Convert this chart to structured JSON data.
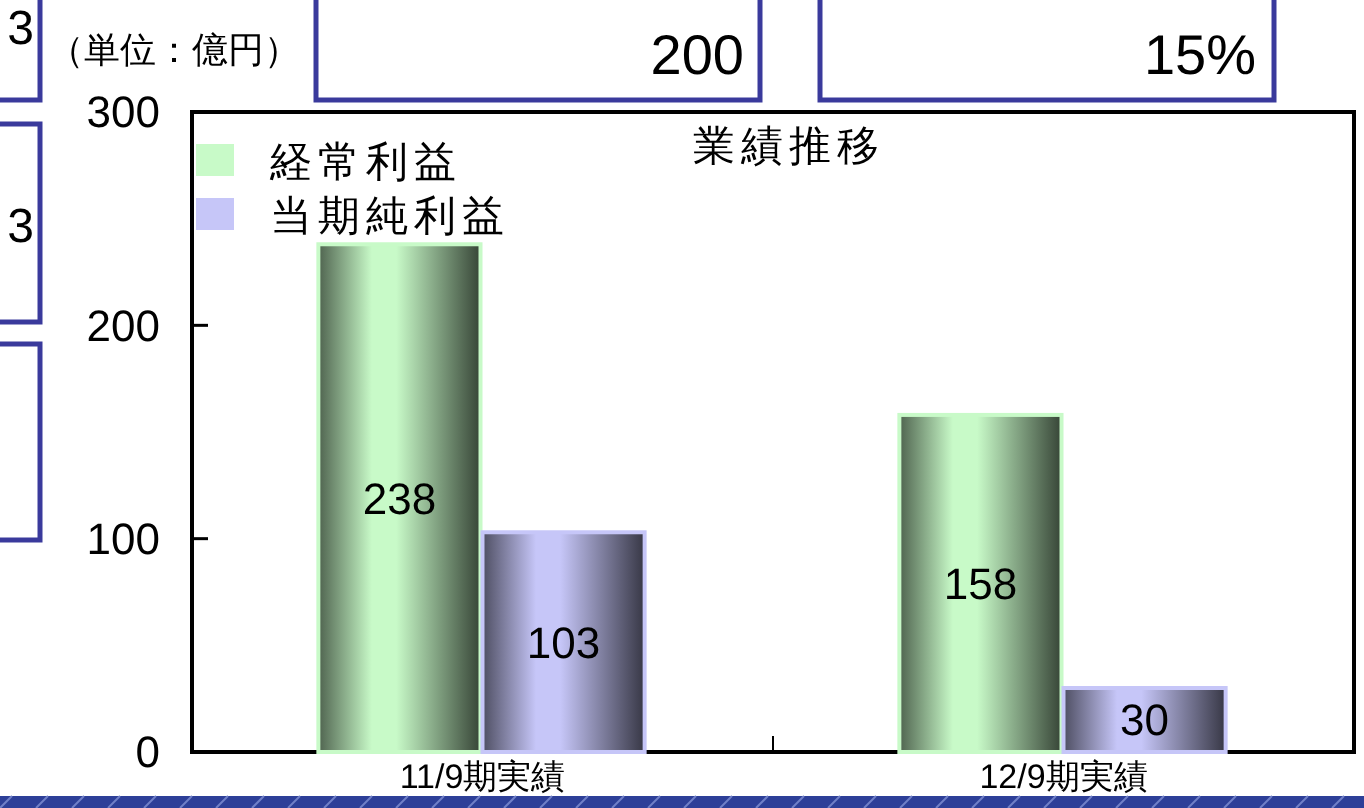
{
  "chart_data": {
    "type": "bar",
    "title": "業績推移",
    "ylabel": "（単位：億円）",
    "categories": [
      "11/9期実績",
      "12/9期実績"
    ],
    "series": [
      {
        "name": "経常利益",
        "color": "#c8fac8",
        "values": [
          238,
          158
        ]
      },
      {
        "name": "当期純利益",
        "color": "#c6c6f8",
        "values": [
          103,
          30
        ]
      }
    ],
    "ylim": [
      0,
      300
    ],
    "yticks": [
      0,
      100,
      200,
      300
    ],
    "data_labels": true,
    "legend": "top left",
    "annotations": [
      "200",
      "15%",
      "3",
      "3"
    ]
  }
}
